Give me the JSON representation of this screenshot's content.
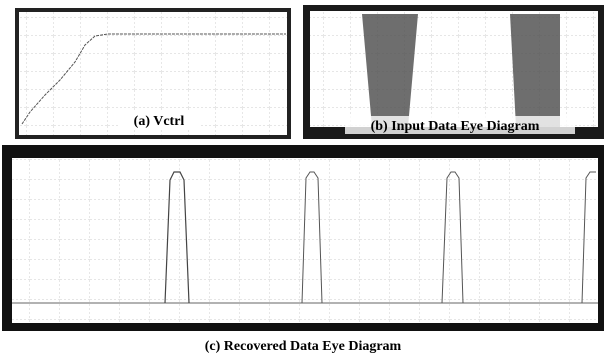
{
  "panels": [
    {
      "caption": "(a) Vctrl"
    },
    {
      "caption": "(b) Input Data Eye Diagram"
    },
    {
      "caption": "(c) Recovered Data Eye Diagram"
    }
  ]
}
